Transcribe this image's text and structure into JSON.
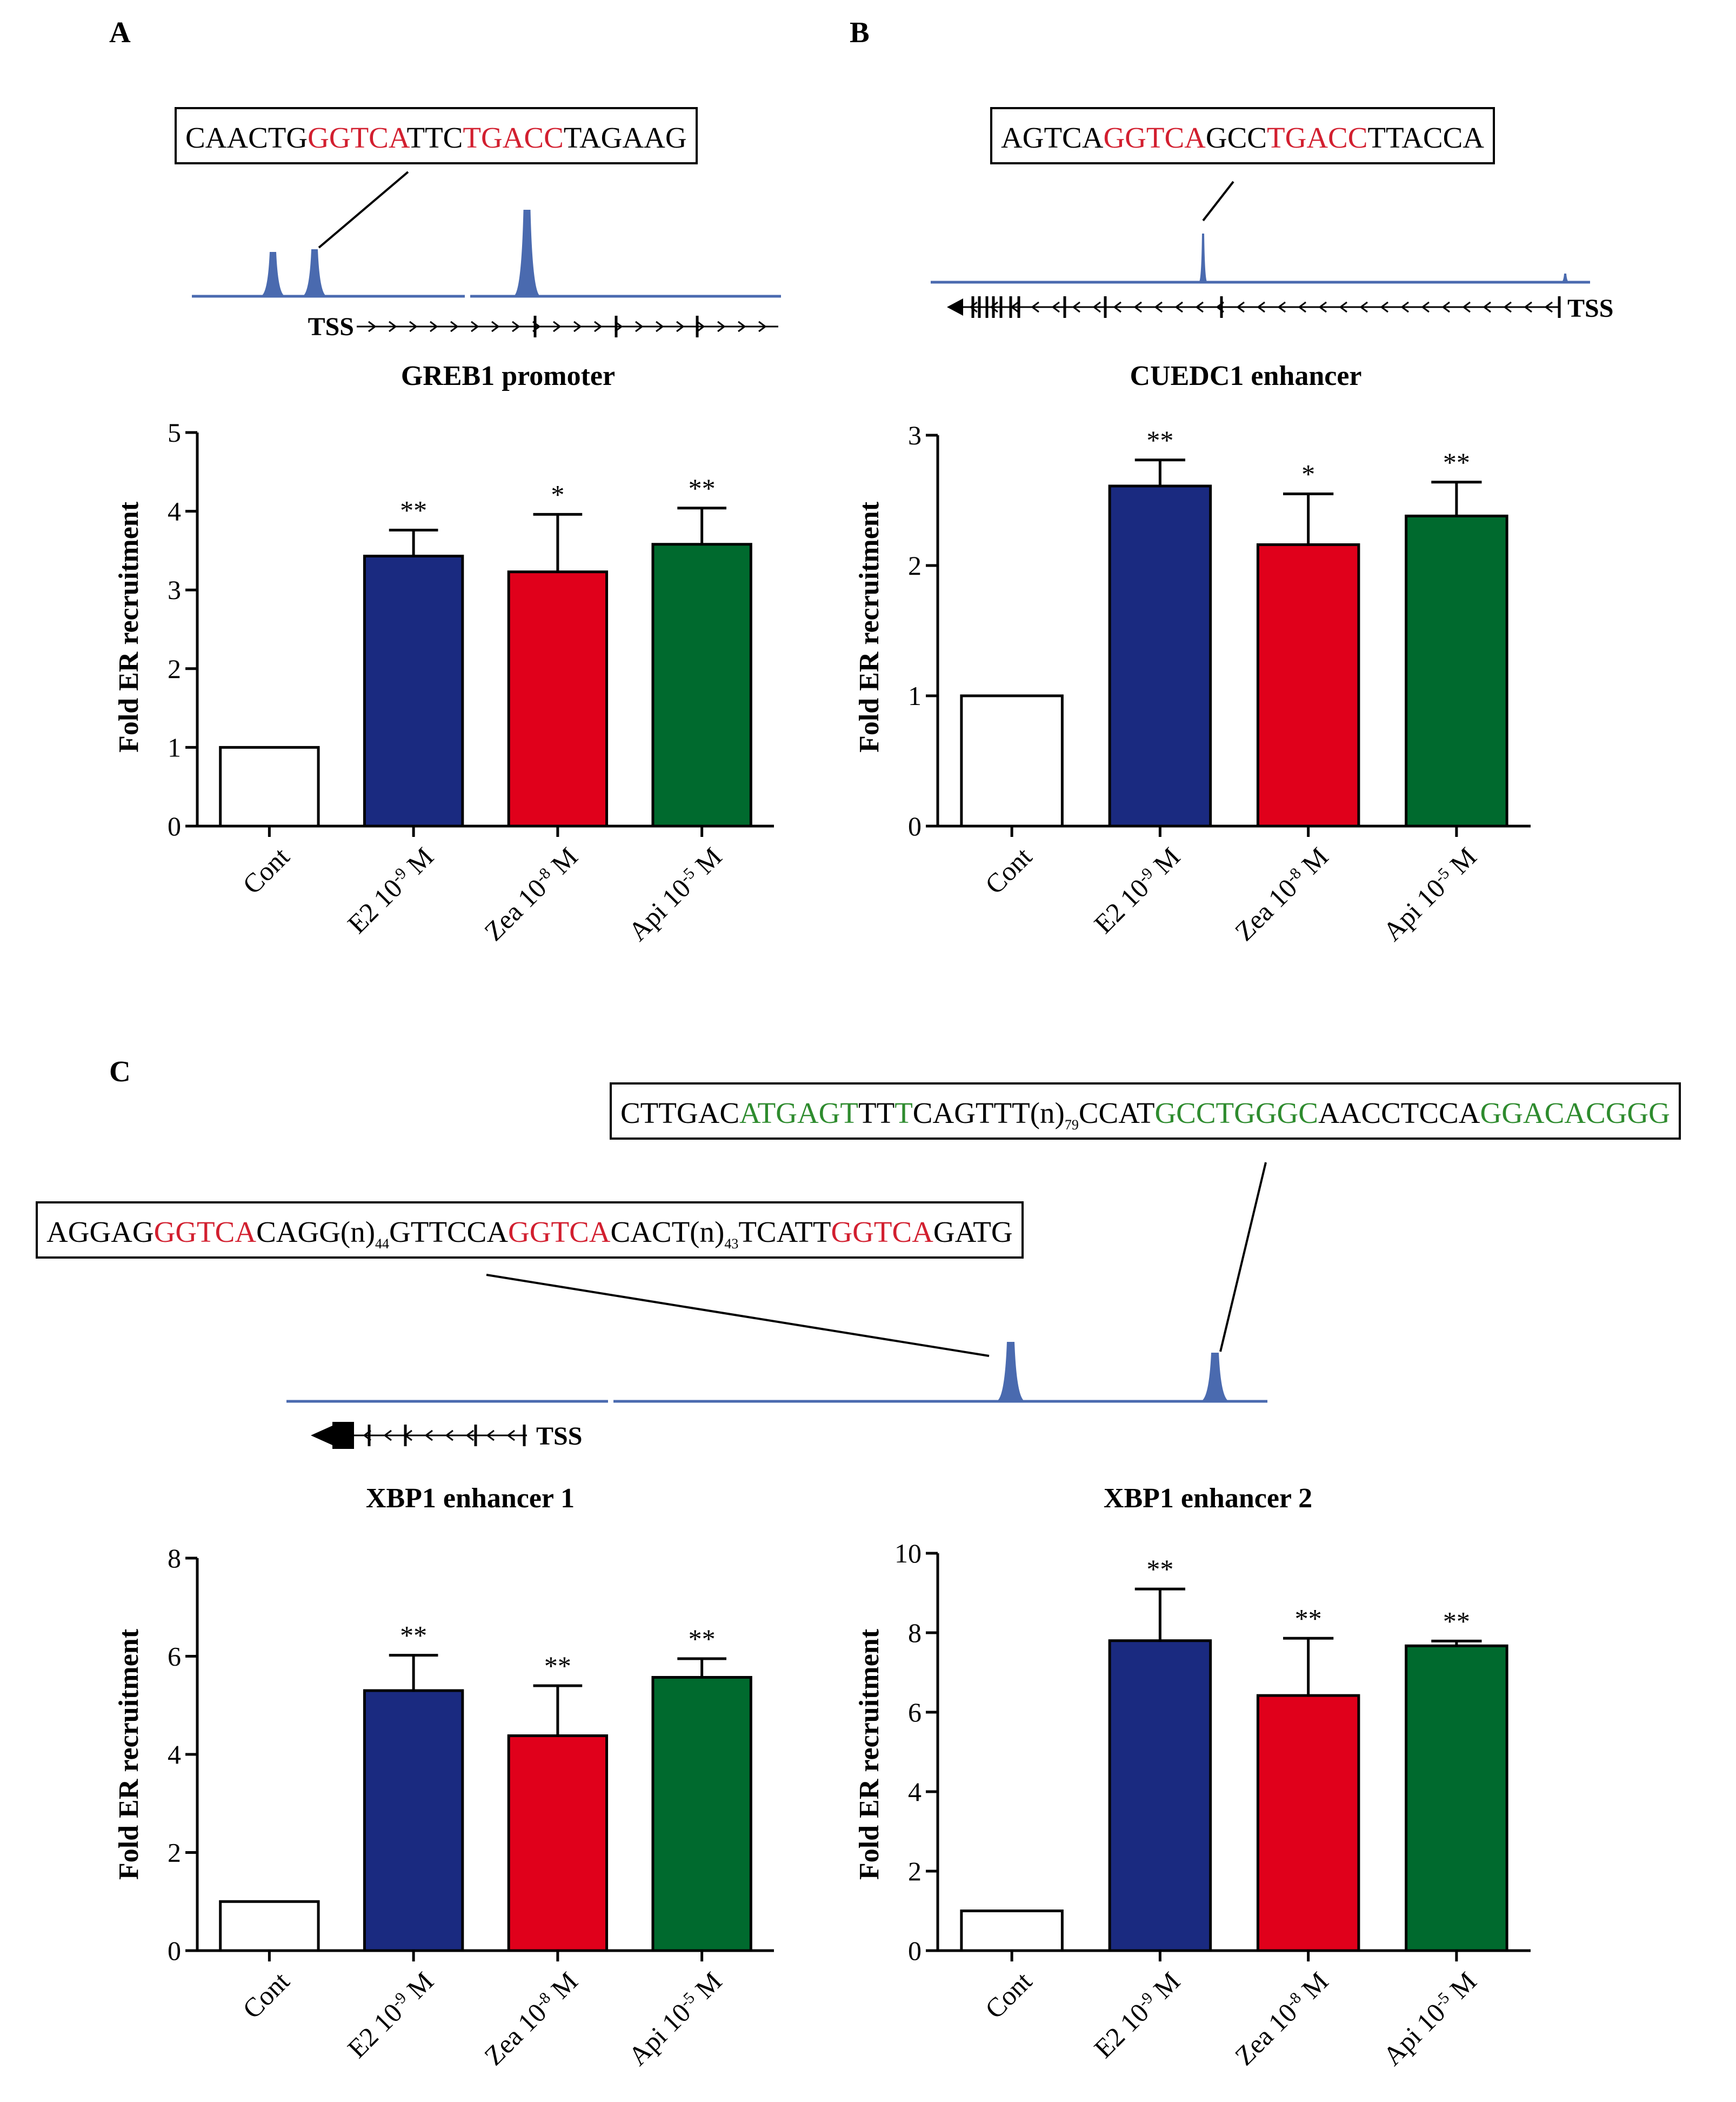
{
  "panel_labels": {
    "a": "A",
    "b": "B",
    "c": "C"
  },
  "colors": {
    "cont": "#ffffff",
    "e2": "#1a2a80",
    "zea": "#e0001b",
    "api": "#006a2e",
    "track": "#4a6aaf",
    "motif_red": "#d21f2f",
    "motif_green": "#2e8b2e"
  },
  "sequences": {
    "greb1": [
      {
        "t": "CAACTG",
        "c": ""
      },
      {
        "t": "GGTCA",
        "c": "r"
      },
      {
        "t": "TTC",
        "c": ""
      },
      {
        "t": "TGACC",
        "c": "r"
      },
      {
        "t": "TAGAAG",
        "c": ""
      }
    ],
    "cuedc1": [
      {
        "t": "AGTCA",
        "c": ""
      },
      {
        "t": "GGTCA",
        "c": "r"
      },
      {
        "t": "GCC",
        "c": ""
      },
      {
        "t": "TGACC",
        "c": "r"
      },
      {
        "t": "TTACCA",
        "c": ""
      }
    ],
    "xbp1_e2": [
      {
        "t": "CTTGAC",
        "c": ""
      },
      {
        "t": "ATGAGT",
        "c": "g"
      },
      {
        "t": "TT",
        "c": ""
      },
      {
        "t": "T",
        "c": "g"
      },
      {
        "t": "CAGTTT(n)",
        "c": ""
      },
      {
        "t": "79",
        "c": "sub"
      },
      {
        "t": "CCAT",
        "c": ""
      },
      {
        "t": "GCCTGGGC",
        "c": "g"
      },
      {
        "t": "AACCTCCA",
        "c": ""
      },
      {
        "t": "GGACACGGG",
        "c": "g"
      }
    ],
    "xbp1_e1": [
      {
        "t": "AGGAG",
        "c": ""
      },
      {
        "t": "GGTCA",
        "c": "r"
      },
      {
        "t": "CAGG(n)",
        "c": ""
      },
      {
        "t": "44",
        "c": "sub"
      },
      {
        "t": "GTTCCA",
        "c": ""
      },
      {
        "t": "GGTCA",
        "c": "r"
      },
      {
        "t": "CACT(n)",
        "c": ""
      },
      {
        "t": "43",
        "c": "sub"
      },
      {
        "t": "TCATT",
        "c": ""
      },
      {
        "t": "GGTCA",
        "c": "r"
      },
      {
        "t": "GATG",
        "c": ""
      }
    ]
  },
  "tracks": {
    "tss_label": "TSS"
  },
  "chart_data": [
    {
      "id": "greb1",
      "type": "bar",
      "title": "GREB1 promoter",
      "ylabel": "Fold ER recruitment",
      "categories": [
        "Cont",
        "E2 10-9 M",
        "Zea 10-8 M",
        "Api 10-5 M"
      ],
      "values": [
        1.0,
        3.43,
        3.23,
        3.58
      ],
      "errors": [
        0,
        0.33,
        0.73,
        0.46
      ],
      "significance": [
        "",
        "**",
        "*",
        "**"
      ],
      "ylim": [
        0,
        5
      ],
      "yticks": [
        0,
        1,
        2,
        3,
        4,
        5
      ]
    },
    {
      "id": "cuedc1",
      "type": "bar",
      "title": "CUEDC1 enhancer",
      "ylabel": "Fold ER recruitment",
      "categories": [
        "Cont",
        "E2 10-9 M",
        "Zea 10-8 M",
        "Api 10-5 M"
      ],
      "values": [
        1.0,
        2.61,
        2.16,
        2.38
      ],
      "errors": [
        0,
        0.2,
        0.39,
        0.26
      ],
      "significance": [
        "",
        "**",
        "*",
        "**"
      ],
      "ylim": [
        0,
        3
      ],
      "yticks": [
        0,
        1,
        2,
        3
      ]
    },
    {
      "id": "xbp1_1",
      "type": "bar",
      "title": "XBP1 enhancer 1",
      "ylabel": "Fold ER recruitment",
      "categories": [
        "Cont",
        "E2 10-9 M",
        "Zea 10-8 M",
        "Api 10-5 M"
      ],
      "values": [
        1.0,
        5.3,
        4.38,
        5.57
      ],
      "errors": [
        0,
        0.72,
        1.02,
        0.38
      ],
      "significance": [
        "",
        "**",
        "**",
        "**"
      ],
      "ylim": [
        0,
        8
      ],
      "yticks": [
        0,
        2,
        4,
        6,
        8
      ]
    },
    {
      "id": "xbp1_2",
      "type": "bar",
      "title": "XBP1 enhancer 2",
      "ylabel": "Fold ER recruitment",
      "categories": [
        "Cont",
        "E2 10-9 M",
        "Zea 10-8 M",
        "Api 10-5 M"
      ],
      "values": [
        1.0,
        7.8,
        6.42,
        7.67
      ],
      "errors": [
        0,
        1.3,
        1.44,
        0.12
      ],
      "significance": [
        "",
        "**",
        "**",
        "**"
      ],
      "ylim": [
        0,
        10
      ],
      "yticks": [
        0,
        2,
        4,
        6,
        8,
        10
      ]
    }
  ]
}
